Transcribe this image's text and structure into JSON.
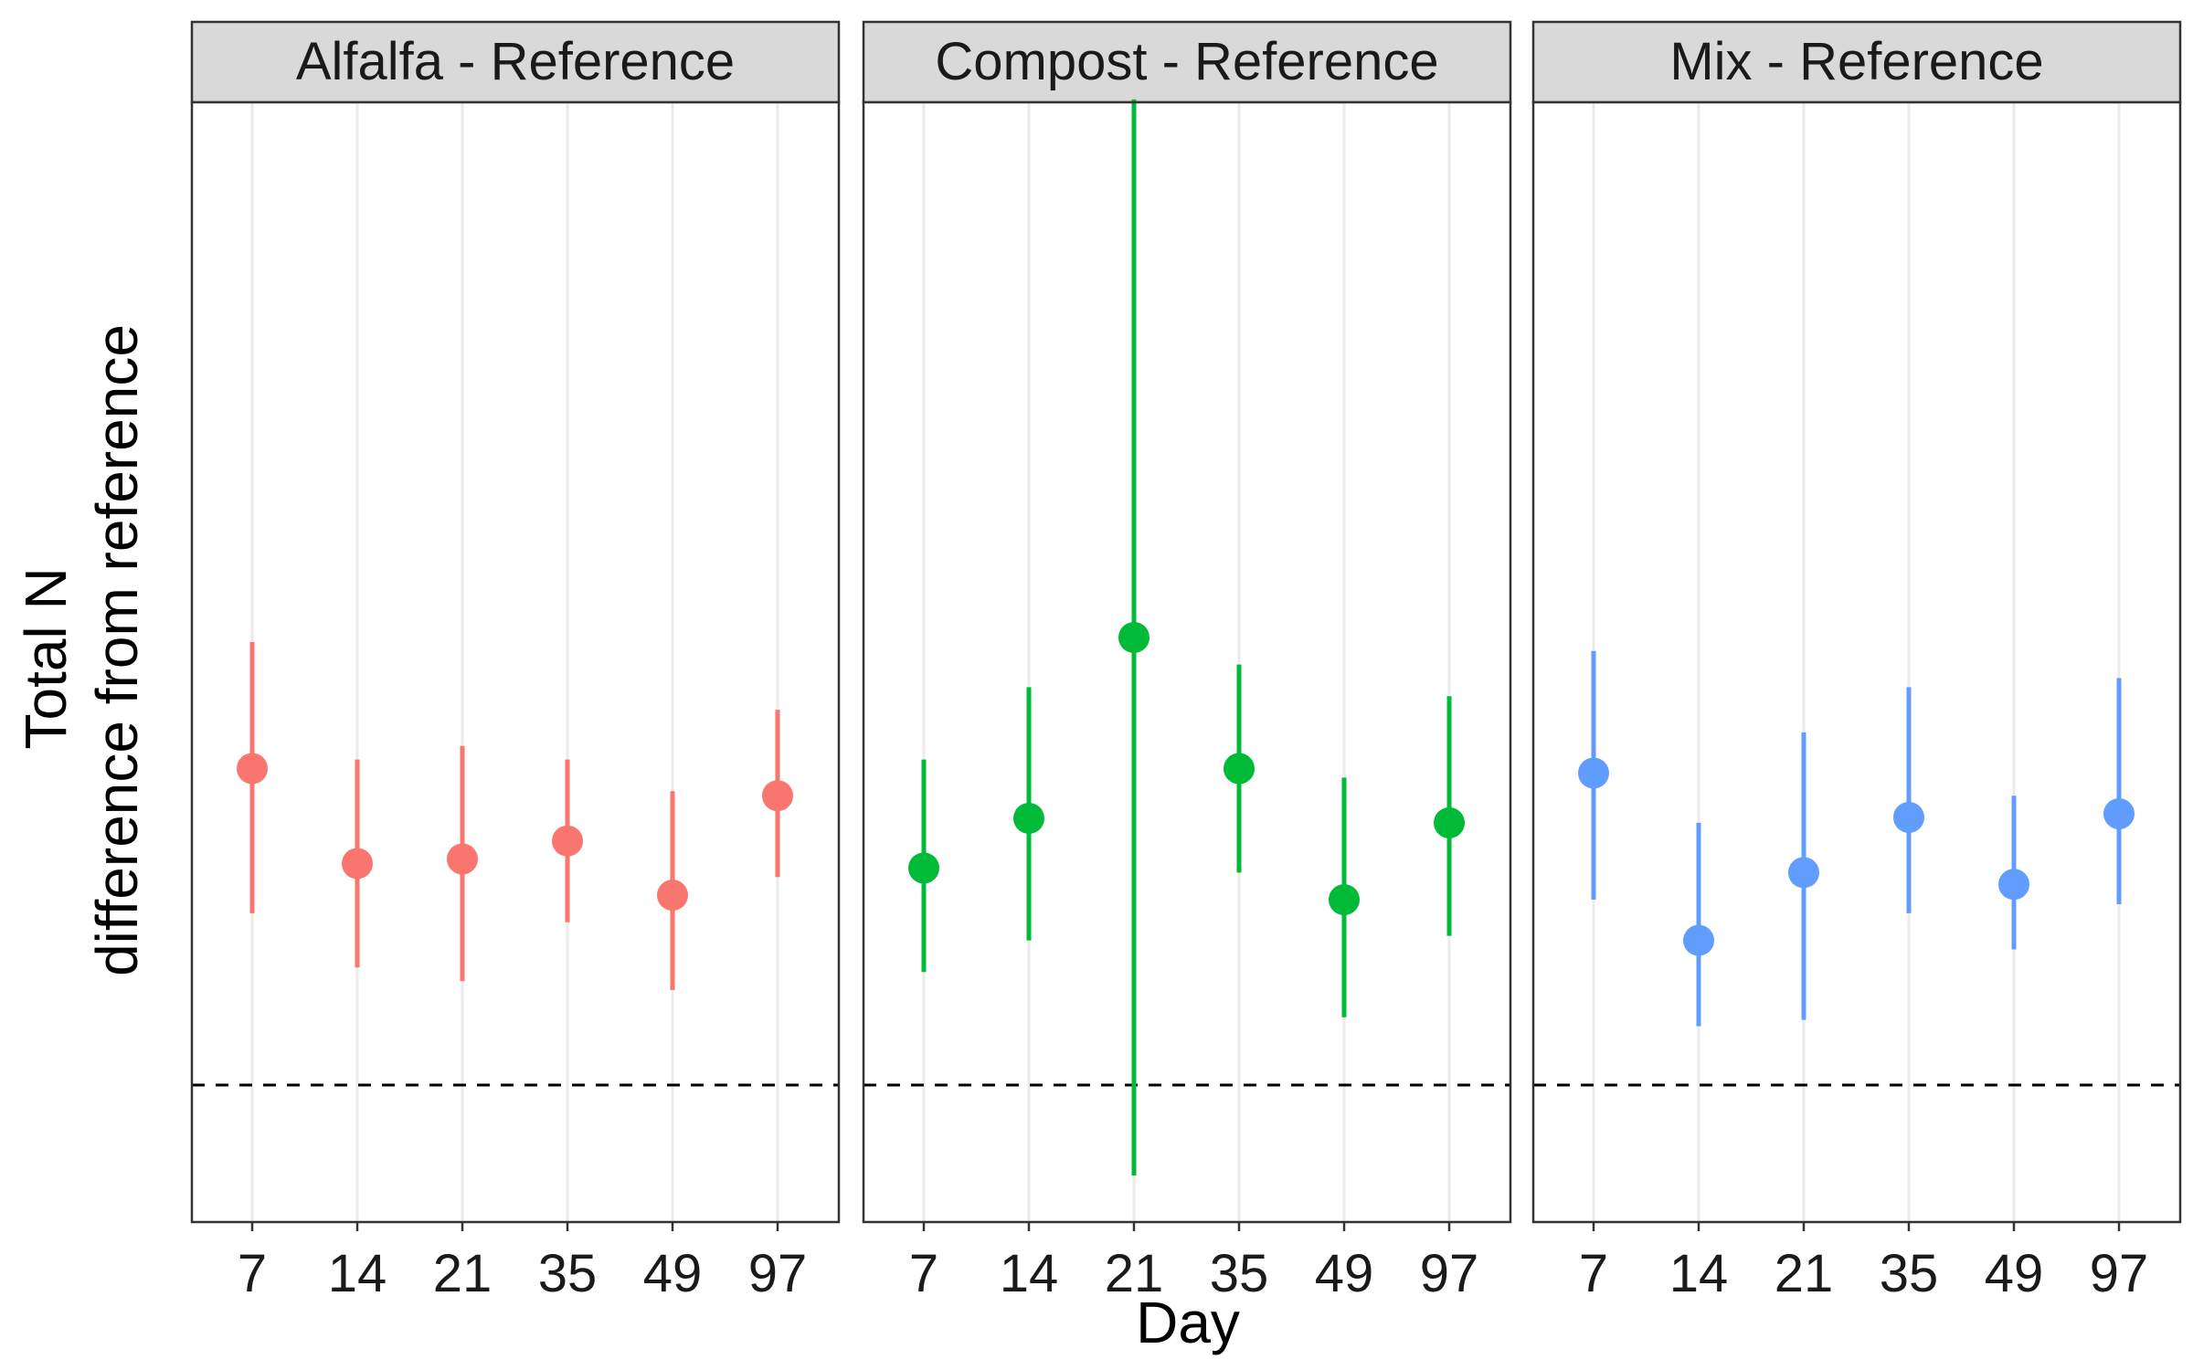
{
  "chart_data": {
    "type": "scatter",
    "style": "pointrange",
    "xlabel": "Day",
    "ylabel_lines": [
      "Total N",
      "difference from reference"
    ],
    "categories": [
      "7",
      "14",
      "21",
      "35",
      "49",
      "97"
    ],
    "y_tick_labels": "none",
    "ylim": [
      -1.6,
      10.0
    ],
    "reference_line": {
      "y": 0,
      "style": "dashed",
      "color": "#000000"
    },
    "grid": {
      "major_x": true,
      "major_y": false
    },
    "panels": [
      {
        "title": "Alfalfa - Reference",
        "color": "#F8766D",
        "estimates": [
          3.5,
          2.45,
          2.5,
          2.7,
          2.1,
          3.2
        ],
        "lower": [
          1.9,
          1.3,
          1.15,
          1.8,
          1.05,
          2.3
        ],
        "upper": [
          4.9,
          3.6,
          3.75,
          3.6,
          3.25,
          4.15
        ]
      },
      {
        "title": "Compost - Reference",
        "color": "#00BA38",
        "estimates": [
          2.4,
          2.95,
          4.95,
          3.5,
          2.05,
          2.9
        ],
        "lower": [
          1.25,
          1.6,
          -1.0,
          2.35,
          0.75,
          1.65
        ],
        "upper": [
          3.6,
          4.4,
          10.9,
          4.65,
          3.4,
          4.3
        ]
      },
      {
        "title": "Mix - Reference",
        "color": "#619CFF",
        "estimates": [
          3.45,
          1.6,
          2.35,
          2.96,
          2.22,
          3.0
        ],
        "lower": [
          2.05,
          0.65,
          0.72,
          1.9,
          1.5,
          2.0
        ],
        "upper": [
          4.8,
          2.9,
          3.9,
          4.4,
          3.2,
          4.5
        ]
      }
    ]
  }
}
